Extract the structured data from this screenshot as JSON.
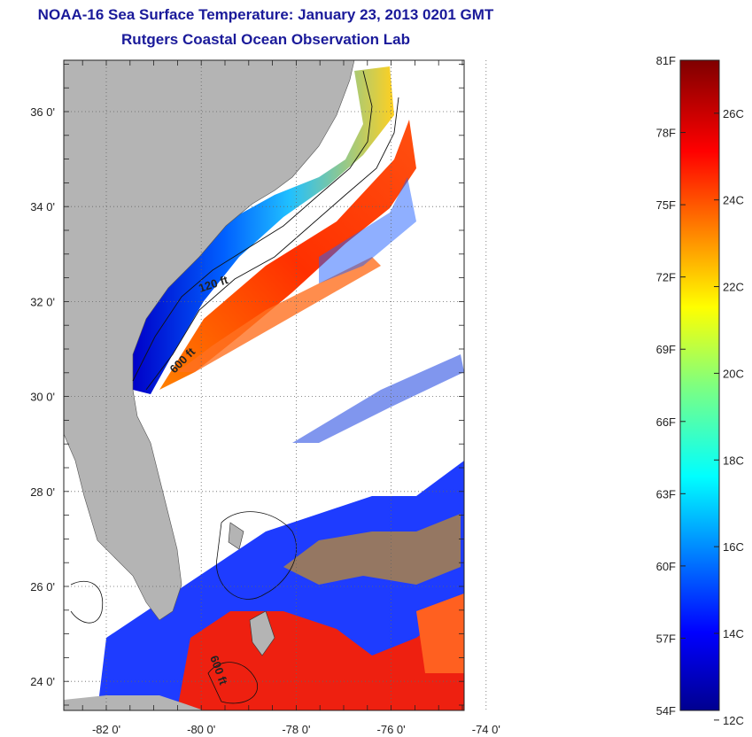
{
  "title": "NOAA-16 Sea Surface Temperature:  January 23, 2013 0201 GMT",
  "subtitle": "Rutgers Coastal Ocean Observation Lab",
  "map": {
    "lat_labels": [
      "36 0'",
      "34 0'",
      "32 0'",
      "30 0'",
      "28 0'",
      "26 0'",
      "24 0'"
    ],
    "lon_labels": [
      "-82 0'",
      "-80 0'",
      "-78 0'",
      "-76 0'",
      "-74 0'"
    ],
    "contour_labels": [
      "120 ft",
      "600 ft",
      "600 ft"
    ],
    "land_color": "#b4b4b4",
    "cloud_color": "#ffffff"
  },
  "colorbar": {
    "fahrenheit": [
      "81F",
      "78F",
      "75F",
      "72F",
      "69F",
      "66F",
      "63F",
      "60F",
      "57F",
      "54F"
    ],
    "celsius": [
      "26C",
      "24C",
      "22C",
      "20C",
      "18C",
      "16C",
      "14C",
      "12C"
    ],
    "range_f": [
      54,
      81
    ],
    "range_c": [
      12,
      27
    ],
    "colormap": "jet"
  }
}
